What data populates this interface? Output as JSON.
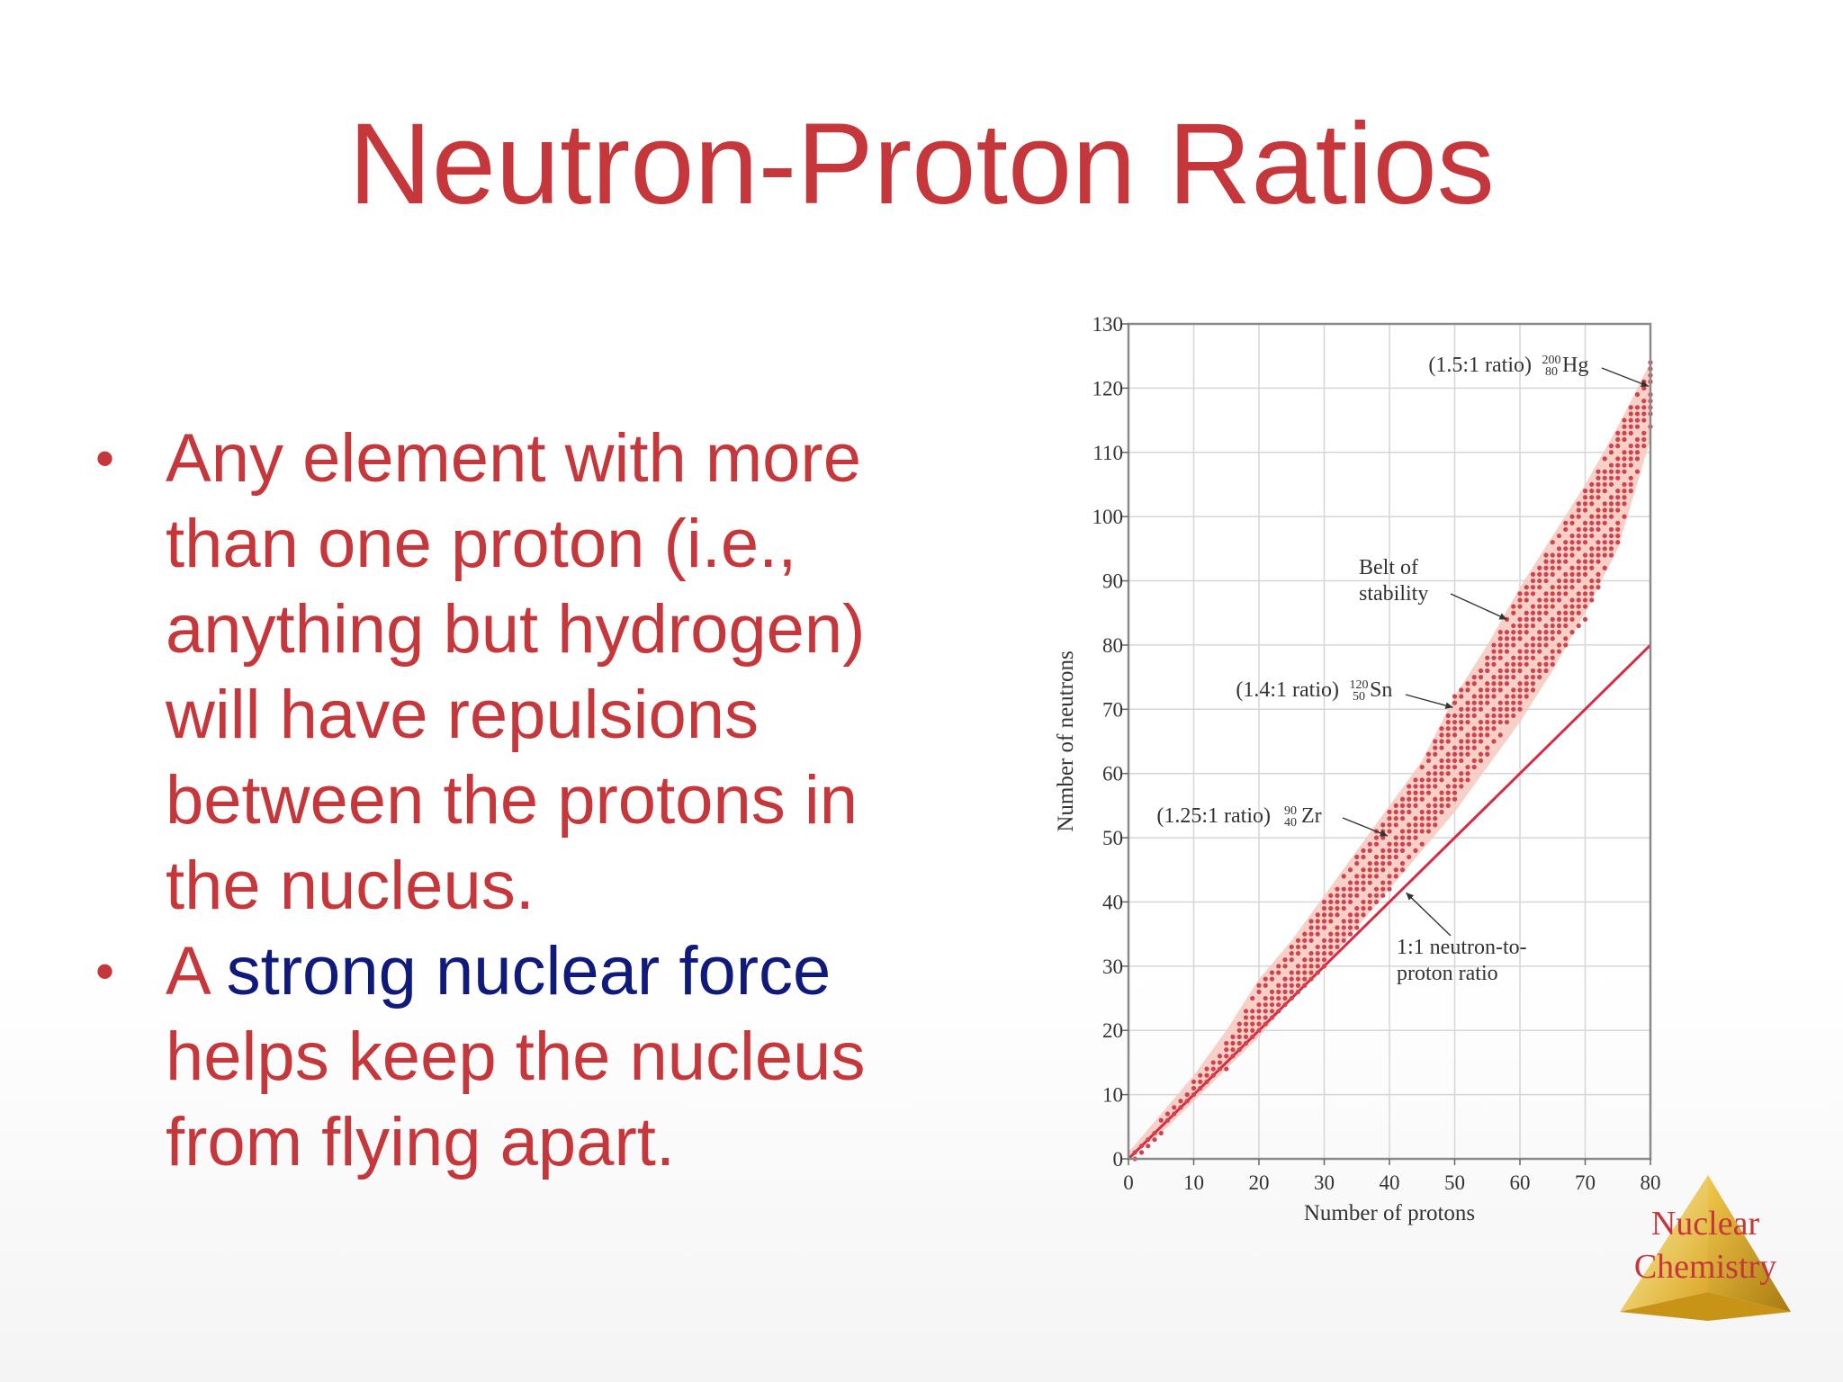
{
  "slide": {
    "title": "Neutron-Proton Ratios",
    "bullets": [
      {
        "text": "Any element with more than one proton (i.e., anything but hydrogen) will have repulsions between the protons in the nucleus."
      },
      {
        "prefix": "A ",
        "highlight": "strong nuclear force",
        "suffix": " helps keep the nucleus from flying apart."
      }
    ],
    "logo": {
      "line1": "Nuclear",
      "line2": "Chemistry"
    },
    "colors": {
      "text_red": "#c6373b",
      "highlight_blue": "#0f1a7a",
      "band": "#f6c9bd",
      "points": "#d0424e",
      "logo_gold": "#e6b93a"
    }
  },
  "chart_data": {
    "type": "scatter",
    "xlabel": "Number of protons",
    "ylabel": "Number of neutrons",
    "xlim": [
      0,
      80
    ],
    "ylim": [
      0,
      130
    ],
    "x_ticks": [
      "0",
      "10",
      "20",
      "30",
      "40",
      "50",
      "60",
      "70",
      "80"
    ],
    "y_ticks": [
      "0",
      "10",
      "20",
      "30",
      "40",
      "50",
      "60",
      "70",
      "80",
      "90",
      "100",
      "110",
      "120",
      "130"
    ],
    "grid": true,
    "series": [
      {
        "name": "1:1 neutron-to-proton ratio",
        "kind": "line",
        "points": [
          [
            0,
            0
          ],
          [
            80,
            80
          ]
        ]
      },
      {
        "name": "Belt of stability",
        "kind": "band",
        "upper": [
          [
            0,
            1
          ],
          [
            5,
            7
          ],
          [
            10,
            13
          ],
          [
            15,
            20
          ],
          [
            20,
            28
          ],
          [
            25,
            34
          ],
          [
            30,
            41
          ],
          [
            35,
            48
          ],
          [
            40,
            55
          ],
          [
            45,
            62
          ],
          [
            50,
            72
          ],
          [
            55,
            80
          ],
          [
            60,
            89
          ],
          [
            65,
            97
          ],
          [
            70,
            105
          ],
          [
            75,
            114
          ],
          [
            80,
            124
          ]
        ],
        "lower": [
          [
            0,
            0
          ],
          [
            5,
            4
          ],
          [
            10,
            9
          ],
          [
            15,
            14
          ],
          [
            20,
            19
          ],
          [
            25,
            25
          ],
          [
            30,
            30
          ],
          [
            35,
            36
          ],
          [
            40,
            42
          ],
          [
            45,
            48
          ],
          [
            50,
            54
          ],
          [
            55,
            61
          ],
          [
            60,
            68
          ],
          [
            65,
            76
          ],
          [
            70,
            85
          ],
          [
            75,
            95
          ],
          [
            80,
            112
          ]
        ]
      },
      {
        "name": "Stable nuclei",
        "kind": "points",
        "lower": [
          [
            1,
            0
          ],
          [
            5,
            4
          ],
          [
            10,
            10
          ],
          [
            15,
            14
          ],
          [
            20,
            20
          ],
          [
            25,
            25
          ],
          [
            30,
            30
          ],
          [
            35,
            36
          ],
          [
            40,
            42
          ],
          [
            45,
            49
          ],
          [
            50,
            56
          ],
          [
            55,
            63
          ],
          [
            60,
            70
          ],
          [
            65,
            77
          ],
          [
            70,
            84
          ],
          [
            75,
            96
          ],
          [
            80,
            114
          ]
        ],
        "upper": [
          [
            1,
            1
          ],
          [
            5,
            6
          ],
          [
            10,
            12
          ],
          [
            15,
            18
          ],
          [
            20,
            27
          ],
          [
            25,
            33
          ],
          [
            30,
            40
          ],
          [
            35,
            47
          ],
          [
            40,
            54
          ],
          [
            45,
            61
          ],
          [
            50,
            72
          ],
          [
            55,
            78
          ],
          [
            60,
            88
          ],
          [
            65,
            96
          ],
          [
            70,
            104
          ],
          [
            75,
            113
          ],
          [
            80,
            124
          ]
        ]
      }
    ],
    "annotations": [
      {
        "label": "(1.5:1 ratio)",
        "mass": "200",
        "atomic": "80",
        "symbol": "Hg",
        "target": [
          80,
          120
        ]
      },
      {
        "label": "(1.4:1 ratio)",
        "mass": "120",
        "atomic": "50",
        "symbol": "Sn",
        "target": [
          50,
          70
        ]
      },
      {
        "label": "(1.25:1 ratio)",
        "mass": "90",
        "atomic": "40",
        "symbol": "Zr",
        "target": [
          40,
          50
        ]
      },
      {
        "line1": "Belt of",
        "line2": "stability",
        "target": [
          58,
          84
        ]
      },
      {
        "line1": "1:1 neutron-to-",
        "line2": "proton ratio",
        "target": [
          42,
          42
        ]
      }
    ]
  }
}
